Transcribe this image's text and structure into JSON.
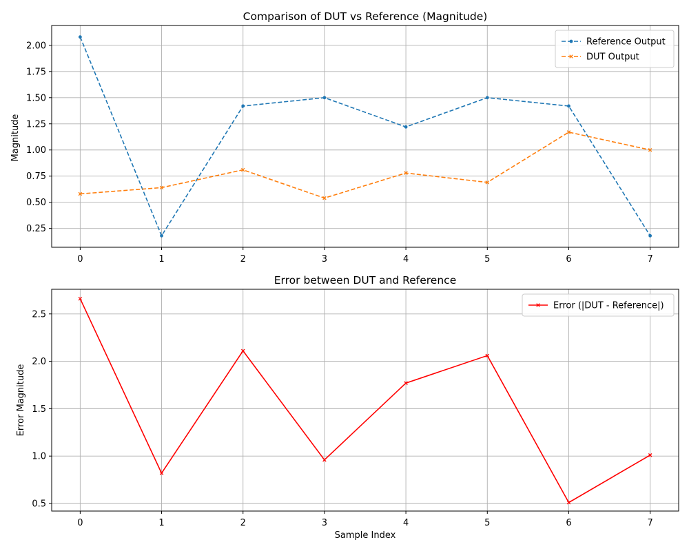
{
  "colors": {
    "reference": "#1f77b4",
    "dut": "#ff7f0e",
    "error": "#ff0000"
  },
  "chart_data": [
    {
      "type": "line",
      "title": "Comparison of DUT vs Reference (Magnitude)",
      "xlabel": "",
      "ylabel": "Magnitude",
      "x": [
        0,
        1,
        2,
        3,
        4,
        5,
        6,
        7
      ],
      "xticks": [
        "0",
        "1",
        "2",
        "3",
        "4",
        "5",
        "6",
        "7"
      ],
      "yticks": [
        "0.25",
        "0.50",
        "0.75",
        "1.00",
        "1.25",
        "1.50",
        "1.75",
        "2.00"
      ],
      "ylim": [
        0.07,
        2.19
      ],
      "grid": true,
      "legend_position": "top-right",
      "series": [
        {
          "name": "Reference Output",
          "values": [
            2.08,
            0.18,
            1.42,
            1.5,
            1.22,
            1.5,
            1.42,
            0.18
          ],
          "linestyle": "dashed",
          "marker": "circle",
          "color": "#1f77b4"
        },
        {
          "name": "DUT Output",
          "values": [
            0.58,
            0.64,
            0.81,
            0.54,
            0.78,
            0.69,
            1.17,
            1.0
          ],
          "linestyle": "dashed",
          "marker": "x",
          "color": "#ff7f0e"
        }
      ]
    },
    {
      "type": "line",
      "title": "Error between DUT and Reference",
      "xlabel": "Sample Index",
      "ylabel": "Error Magnitude",
      "x": [
        0,
        1,
        2,
        3,
        4,
        5,
        6,
        7
      ],
      "xticks": [
        "0",
        "1",
        "2",
        "3",
        "4",
        "5",
        "6",
        "7"
      ],
      "yticks": [
        "0.5",
        "1.0",
        "1.5",
        "2.0",
        "2.5"
      ],
      "ylim": [
        0.42,
        2.76
      ],
      "grid": true,
      "legend_position": "top-right",
      "series": [
        {
          "name": "Error (|DUT - Reference|)",
          "values": [
            2.66,
            0.82,
            2.11,
            0.96,
            1.77,
            2.06,
            0.51,
            1.01
          ],
          "linestyle": "solid",
          "marker": "x",
          "color": "#ff0000"
        }
      ]
    }
  ]
}
